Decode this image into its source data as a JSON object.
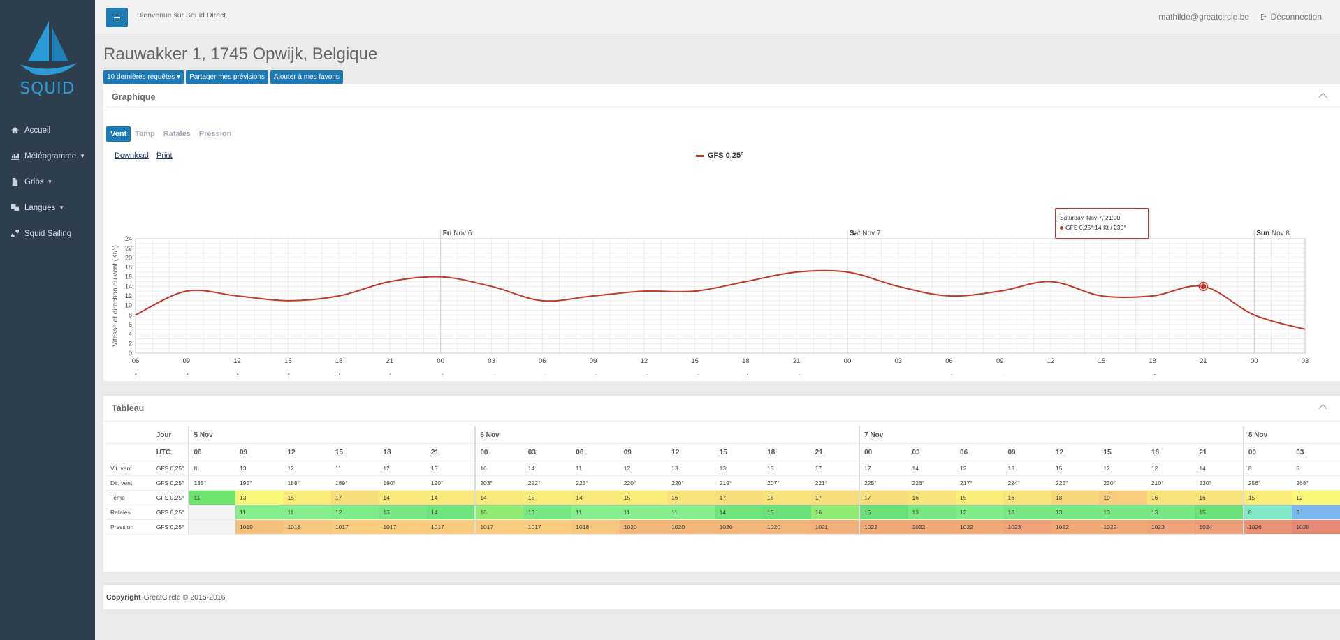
{
  "sidebar": {
    "logo_text": "SQUID",
    "items": [
      {
        "label": "Accueil",
        "icon": "home-icon",
        "caret": false
      },
      {
        "label": "Météogramme",
        "icon": "chart-icon",
        "caret": true
      },
      {
        "label": "Gribs",
        "icon": "file-icon",
        "caret": true
      },
      {
        "label": "Langues",
        "icon": "language-icon",
        "caret": true
      },
      {
        "label": "Squid Sailing",
        "icon": "link-icon",
        "caret": false
      }
    ]
  },
  "topbar": {
    "welcome": "Bienvenue sur Squid Direct.",
    "user": "mathilde@greatcircle.be",
    "logout": "Déconnection"
  },
  "page": {
    "title": "Rauwakker 1, 1745 Opwijk, Belgique",
    "buttons": [
      "10 dernières requêtes ▾",
      "Partager mes prévisions",
      "Ajouter à mes favoris"
    ]
  },
  "graph_panel": {
    "title": "Graphique",
    "tabs": [
      "Vent",
      "Temp",
      "Rafales",
      "Pression"
    ],
    "active_tab": "Vent",
    "links": [
      "Download",
      "Print"
    ],
    "tooltip": {
      "title": "Saturday, Nov 7, 21:00",
      "value": "GFS 0,25°:14 Kt / 230°"
    }
  },
  "chart_data": {
    "type": "line",
    "series": [
      {
        "name": "GFS 0,25°",
        "color": "#c0392b",
        "values": [
          8,
          13,
          12,
          11,
          12,
          15,
          16,
          14,
          11,
          12,
          13,
          13,
          15,
          17,
          17,
          14,
          12,
          13,
          15,
          12,
          12,
          14,
          8,
          5
        ],
        "directions": [
          185,
          195,
          188,
          189,
          190,
          190,
          203,
          222,
          223,
          220,
          220,
          219,
          207,
          221,
          225,
          226,
          217,
          224,
          225,
          230,
          210,
          230,
          256,
          268
        ]
      }
    ],
    "x": [
      "06",
      "09",
      "12",
      "15",
      "18",
      "21",
      "00",
      "03",
      "06",
      "09",
      "12",
      "15",
      "18",
      "21",
      "00",
      "03",
      "06",
      "09",
      "12",
      "15",
      "18",
      "21",
      "00",
      "03"
    ],
    "day_labels": [
      {
        "index": 6,
        "bold": "Fri",
        "text": "Nov 6"
      },
      {
        "index": 14,
        "bold": "Sat",
        "text": "Nov 7"
      },
      {
        "index": 22,
        "bold": "Sun",
        "text": "Nov 8"
      }
    ],
    "ylabel": "Vitesse et direction du vent (Kt/°)",
    "ylim": [
      0,
      24
    ],
    "yticks": [
      0,
      2,
      4,
      6,
      8,
      10,
      12,
      14,
      16,
      18,
      20,
      22,
      24
    ],
    "grid": true,
    "highlight_index": 21
  },
  "table_panel": {
    "title": "Tableau",
    "row_jour": "Jour",
    "row_utc": "UTC",
    "model": "GFS 0,25°",
    "days": [
      {
        "label": "5 Nov",
        "span": 6
      },
      {
        "label": "6 Nov",
        "span": 8
      },
      {
        "label": "7 Nov",
        "span": 8
      },
      {
        "label": "8 Nov",
        "span": 2
      }
    ],
    "hours": [
      "06",
      "09",
      "12",
      "15",
      "18",
      "21",
      "00",
      "03",
      "06",
      "09",
      "12",
      "15",
      "18",
      "21",
      "00",
      "03",
      "06",
      "09",
      "12",
      "15",
      "18",
      "21",
      "00",
      "03"
    ],
    "rows": [
      {
        "label": "Vit. vent",
        "values": [
          "8",
          "13",
          "12",
          "11",
          "12",
          "15",
          "16",
          "14",
          "11",
          "12",
          "13",
          "13",
          "15",
          "17",
          "17",
          "14",
          "12",
          "13",
          "15",
          "12",
          "12",
          "14",
          "8",
          "5"
        ]
      },
      {
        "label": "Dir. vent",
        "values": [
          "185°",
          "195°",
          "188°",
          "189°",
          "190°",
          "190°",
          "203°",
          "222°",
          "223°",
          "220°",
          "220°",
          "219°",
          "207°",
          "221°",
          "225°",
          "226°",
          "217°",
          "224°",
          "225°",
          "230°",
          "210°",
          "230°",
          "256°",
          "268°"
        ]
      },
      {
        "label": "Temp",
        "values": [
          "11",
          "13",
          "15",
          "17",
          "14",
          "14",
          "14",
          "15",
          "14",
          "15",
          "16",
          "17",
          "16",
          "17",
          "17",
          "16",
          "15",
          "16",
          "18",
          "19",
          "16",
          "16",
          "15",
          "12"
        ],
        "colors": [
          "#6ce36c",
          "#f7f77a",
          "#f9ec78",
          "#f8de7a",
          "#f9e97a",
          "#f9e97a",
          "#f9e97a",
          "#f9ec78",
          "#f9e97a",
          "#f9ec78",
          "#f8e47b",
          "#f8de7a",
          "#f8e47b",
          "#f8de7a",
          "#f8de7a",
          "#f8e47b",
          "#f9ec78",
          "#f8e47b",
          "#f7d67c",
          "#f7cf7c",
          "#f8e47b",
          "#f8e47b",
          "#f9ec78",
          "#f7f77a"
        ]
      },
      {
        "label": "Rafales",
        "values": [
          "",
          "11",
          "11",
          "12",
          "13",
          "14",
          "16",
          "13",
          "11",
          "11",
          "11",
          "14",
          "15",
          "16",
          "15",
          "13",
          "12",
          "13",
          "13",
          "13",
          "13",
          "15",
          "8",
          "3"
        ],
        "colors": [
          "#f4f4f4",
          "#86ee8c",
          "#86ee8c",
          "#7eec88",
          "#78e884",
          "#70e47c",
          "#90ea74",
          "#78e884",
          "#86ee8c",
          "#86ee8c",
          "#86ee8c",
          "#70e47c",
          "#6ae078",
          "#90ea74",
          "#6ae078",
          "#78e884",
          "#7eec88",
          "#78e884",
          "#78e884",
          "#78e884",
          "#78e884",
          "#6ae078",
          "#7fe8c8",
          "#7cb6ec"
        ]
      },
      {
        "label": "Pression",
        "values": [
          "",
          "1019",
          "1018",
          "1017",
          "1017",
          "1017",
          "1017",
          "1017",
          "1018",
          "1020",
          "1020",
          "1020",
          "1020",
          "1021",
          "1022",
          "1022",
          "1022",
          "1023",
          "1022",
          "1022",
          "1023",
          "1024",
          "1026",
          "1028"
        ],
        "colors": [
          "#f4f4f4",
          "#f5c07c",
          "#f7c67e",
          "#f8cb7e",
          "#f8cb7e",
          "#f8cb7e",
          "#f8cb7e",
          "#f8cb7e",
          "#f7c67e",
          "#f3b67a",
          "#f3b67a",
          "#f3b67a",
          "#f3b67a",
          "#f1b07a",
          "#f0aa78",
          "#f0aa78",
          "#f0aa78",
          "#eea478",
          "#f0aa78",
          "#f0aa78",
          "#eea478",
          "#ec9e76",
          "#e99476",
          "#e68a76"
        ]
      }
    ]
  },
  "footer": {
    "bold": "Copyright",
    "text": "GreatCircle © 2015-2016"
  }
}
